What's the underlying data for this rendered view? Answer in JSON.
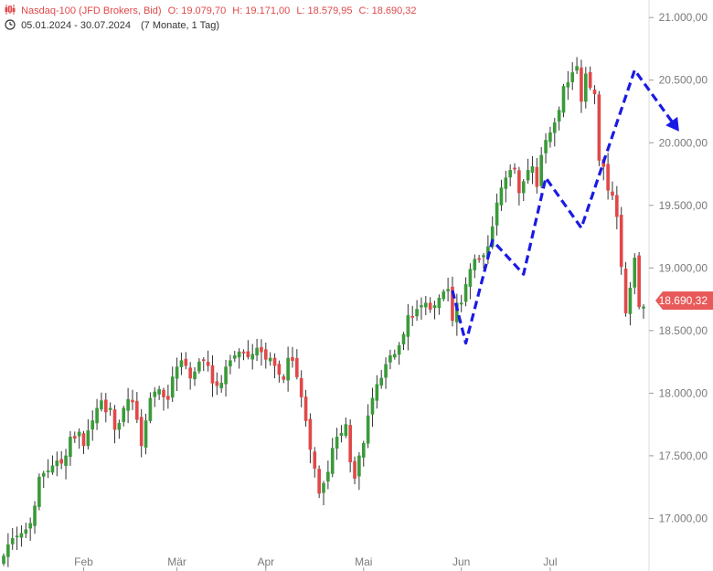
{
  "header": {
    "symbol": "Nasdaq-100 (JFD Brokers, Bid)",
    "open": "O: 19.079,70",
    "high": "H: 19.171,00",
    "low": "L: 18.579,95",
    "close": "C: 18.690,32",
    "range": "05.01.2024 - 30.07.2024",
    "interval": "(7 Monate, 1 Tag)"
  },
  "last_price_label": "18.690,32",
  "colors": {
    "up": "#3a9a3a",
    "down": "#e04848",
    "arrow": "#1a1ae6",
    "axis": "#7a7a7a"
  },
  "chart_data": {
    "type": "candlestick",
    "y_ticks": [
      {
        "value": 17000,
        "label": "17.000,00"
      },
      {
        "value": 17500,
        "label": "17.500,00"
      },
      {
        "value": 18000,
        "label": "18.000,00"
      },
      {
        "value": 18500,
        "label": "18.500,00"
      },
      {
        "value": 19000,
        "label": "19.000,00"
      },
      {
        "value": 19500,
        "label": "19.500,00"
      },
      {
        "value": 20000,
        "label": "20.000,00"
      },
      {
        "value": 20500,
        "label": "20.500,00"
      },
      {
        "value": 21000,
        "label": "21.000,00"
      }
    ],
    "ylim": [
      16580,
      21140
    ],
    "x_ticks": [
      {
        "label": "Feb",
        "index": 18
      },
      {
        "label": "Mär",
        "index": 39
      },
      {
        "label": "Apr",
        "index": 59
      },
      {
        "label": "Mai",
        "index": 81
      },
      {
        "label": "Jun",
        "index": 103
      },
      {
        "label": "Jul",
        "index": 123
      }
    ],
    "n_days": 145,
    "closes": [
      16700,
      16790,
      16840,
      16860,
      16880,
      16910,
      16960,
      17100,
      17330,
      17360,
      17380,
      17420,
      17460,
      17440,
      17500,
      17650,
      17640,
      17690,
      17580,
      17700,
      17780,
      17880,
      17940,
      17850,
      17880,
      17710,
      17760,
      17880,
      17950,
      17930,
      17790,
      17580,
      17780,
      17960,
      18010,
      18030,
      17970,
      17950,
      18130,
      18210,
      18260,
      18220,
      18120,
      18170,
      18250,
      18260,
      18220,
      18080,
      18060,
      18080,
      18210,
      18260,
      18300,
      18330,
      18320,
      18290,
      18310,
      18360,
      18330,
      18270,
      18280,
      18220,
      18150,
      18110,
      18280,
      18260,
      18130,
      17970,
      17780,
      17550,
      17400,
      17200,
      17280,
      17370,
      17560,
      17650,
      17680,
      17750,
      17450,
      17320,
      17500,
      17600,
      17820,
      17960,
      18070,
      18120,
      18230,
      18300,
      18310,
      18380,
      18470,
      18620,
      18610,
      18670,
      18700,
      18720,
      18670,
      18700,
      18760,
      18810,
      18830,
      18580,
      18720,
      18720,
      18870,
      18990,
      19070,
      19070,
      19100,
      19170,
      19330,
      19520,
      19640,
      19720,
      19780,
      19790,
      19600,
      19690,
      19780,
      19810,
      19650,
      19900,
      20020,
      20080,
      20160,
      20260,
      20450,
      20480,
      20560,
      20610,
      20330,
      20550,
      20440,
      20390,
      19860,
      19810,
      19620,
      19580,
      19410,
      19010,
      18640,
      18840,
      19080,
      18690,
      18690
    ],
    "swing_projection": [
      {
        "index": 101,
        "value": 18820
      },
      {
        "index": 104,
        "value": 18400
      },
      {
        "index": 110,
        "value": 19220
      },
      {
        "index": 117,
        "value": 18950
      },
      {
        "index": 122,
        "value": 19720
      },
      {
        "index": 130,
        "value": 19320
      },
      {
        "index": 142,
        "value": 20580
      },
      {
        "index": 152,
        "value": 20090
      }
    ]
  }
}
